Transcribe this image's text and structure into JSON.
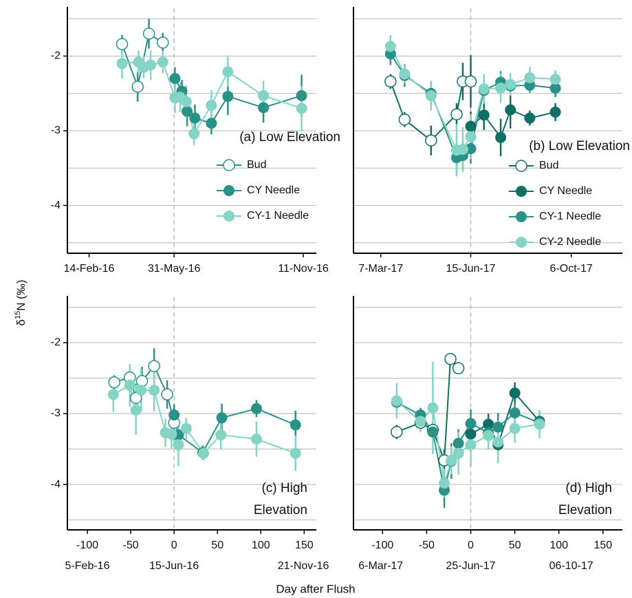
{
  "chart_data": [
    {
      "type": "line",
      "title": [
        "(a) Low Elevation"
      ],
      "xlim": [
        -123,
        164
      ],
      "ylim": [
        -4.64,
        -1.36
      ],
      "yticks": [
        -2,
        -3,
        -4
      ],
      "minor_yticks": [
        -1.5,
        -2.5,
        -3.5,
        -4.5
      ],
      "show_ytick_labels": true,
      "date_ticks": [
        {
          "value": -98,
          "label": "14-Feb-16"
        },
        {
          "value": 0,
          "label": "31-May-16"
        },
        {
          "value": 149,
          "label": "11-Nov-16"
        }
      ],
      "vline": 0,
      "legend": true,
      "series": [
        {
          "name": "Bud",
          "color": "#2a9187",
          "hollow": true,
          "x": [
            -60,
            -42,
            -29,
            -13
          ],
          "values": [
            -1.84,
            -2.41,
            -1.7,
            -1.82
          ],
          "errors": [
            0.12,
            0.2,
            0.2,
            0.13
          ]
        },
        {
          "name": "CY Needle",
          "color": "#2a9187",
          "hollow": false,
          "x": [
            1,
            9,
            15,
            24,
            43,
            62,
            103,
            147
          ],
          "values": [
            -2.3,
            -2.47,
            -2.74,
            -2.83,
            -2.9,
            -2.54,
            -2.69,
            -2.53
          ],
          "errors": [
            0.15,
            0.15,
            0.2,
            0.18,
            0.15,
            0.25,
            0.2,
            0.28
          ]
        },
        {
          "name": "CY-1 Needle",
          "color": "#84d4c6",
          "hollow": false,
          "x": [
            -60,
            -41,
            -35,
            -27,
            -13,
            1,
            7,
            14,
            23,
            43,
            62,
            103,
            147
          ],
          "values": [
            -2.1,
            -2.08,
            -2.15,
            -2.12,
            -2.08,
            -2.56,
            -2.55,
            -2.61,
            -3.04,
            -2.66,
            -2.21,
            -2.53,
            -2.7
          ],
          "errors": [
            0.2,
            0.15,
            0.15,
            0.2,
            0.15,
            0.2,
            0.2,
            0.22,
            0.15,
            0.2,
            0.2,
            0.2,
            0.3
          ]
        }
      ]
    },
    {
      "type": "line",
      "title": [
        "(b) Low Elevation"
      ],
      "xlim": [
        -133,
        172
      ],
      "ylim": [
        -4.64,
        -1.36
      ],
      "yticks": [
        -2,
        -3,
        -4
      ],
      "minor_yticks": [
        -1.5,
        -2.5,
        -3.5,
        -4.5
      ],
      "show_ytick_labels": false,
      "date_ticks": [
        {
          "value": -102,
          "label": "7-Mar-17"
        },
        {
          "value": 0,
          "label": "15-Jun-17"
        },
        {
          "value": 114,
          "label": "6-Oct-17"
        }
      ],
      "vline": 0,
      "legend": true,
      "series": [
        {
          "name": "Bud",
          "color": "#0f6e66",
          "hollow": true,
          "x": [
            -91,
            -75,
            -45,
            -16,
            -9,
            0
          ],
          "values": [
            -2.34,
            -2.85,
            -3.13,
            -2.78,
            -2.34,
            -2.34
          ],
          "errors": [
            0.1,
            0.1,
            0.2,
            0.15,
            0.25,
            0.35
          ]
        },
        {
          "name": "CY Needle",
          "color": "#0f6e66",
          "hollow": false,
          "x": [
            0,
            15,
            34,
            45,
            67,
            96
          ],
          "values": [
            -2.94,
            -2.79,
            -3.09,
            -2.72,
            -2.83,
            -2.75
          ],
          "errors": [
            0.2,
            0.2,
            0.25,
            0.25,
            0.1,
            0.12
          ]
        },
        {
          "name": "CY-1 Needle",
          "color": "#2a9187",
          "hollow": false,
          "x": [
            -91,
            -75,
            -45,
            -16,
            -9,
            0,
            15,
            34,
            45,
            67,
            96
          ],
          "values": [
            -1.97,
            -2.26,
            -2.5,
            -3.36,
            -3.33,
            -3.24,
            -2.46,
            -2.35,
            -2.4,
            -2.39,
            -2.43
          ],
          "errors": [
            0.15,
            0.15,
            0.15,
            0.2,
            0.2,
            0.2,
            0.15,
            0.15,
            0.1,
            0.1,
            0.12
          ]
        },
        {
          "name": "CY-2 Needle",
          "color": "#84d4c6",
          "hollow": false,
          "x": [
            -91,
            -75,
            -45,
            -16,
            -9,
            0,
            15,
            34,
            45,
            67,
            96
          ],
          "values": [
            -1.87,
            -2.24,
            -2.53,
            -3.26,
            -3.25,
            -3.08,
            -2.44,
            -2.43,
            -2.38,
            -2.29,
            -2.31
          ],
          "errors": [
            0.15,
            0.12,
            0.2,
            0.35,
            0.3,
            0.3,
            0.2,
            0.2,
            0.15,
            0.15,
            0.12
          ]
        }
      ]
    },
    {
      "type": "line",
      "title": [
        "(c) High",
        "Elevation"
      ],
      "xlim": [
        -123,
        164
      ],
      "ylim": [
        -4.64,
        -1.36
      ],
      "yticks": [
        -2,
        -3,
        -4
      ],
      "minor_yticks": [
        -1.5,
        -2.5,
        -3.5,
        -4.5
      ],
      "show_ytick_labels": true,
      "xticks": [
        -100,
        -50,
        0,
        50,
        100,
        150
      ],
      "date_ticks": [
        {
          "value": -100,
          "label": "5-Feb-16"
        },
        {
          "value": 0,
          "label": "15-Jun-16"
        },
        {
          "value": 149,
          "label": "21-Nov-16"
        }
      ],
      "vline": 0,
      "legend": false,
      "series": [
        {
          "color": "#2a9187",
          "hollow": true,
          "x": [
            -69,
            -51,
            -44,
            -37,
            -23,
            -8,
            0
          ],
          "values": [
            -2.56,
            -2.49,
            -2.78,
            -2.54,
            -2.33,
            -2.73,
            -3.13
          ],
          "errors": [
            0.1,
            0.1,
            0.2,
            0.2,
            0.25,
            0.2,
            0.25
          ]
        },
        {
          "color": "#2a9187",
          "hollow": false,
          "x": [
            0,
            5,
            33,
            55,
            95,
            140
          ],
          "values": [
            -3.02,
            -3.3,
            -3.55,
            -3.06,
            -2.93,
            -3.16
          ],
          "errors": [
            0.15,
            0.2,
            0.1,
            0.2,
            0.12,
            0.2
          ]
        },
        {
          "color": "#84d4c6",
          "hollow": false,
          "x": [
            -70,
            -51,
            -44,
            -38,
            -23,
            -10,
            -3,
            5,
            14,
            34,
            54,
            95,
            140
          ],
          "values": [
            -2.73,
            -2.6,
            -2.95,
            -2.67,
            -2.67,
            -3.27,
            -3.29,
            -3.44,
            -3.21,
            -3.56,
            -3.3,
            -3.36,
            -3.56
          ],
          "errors": [
            0.25,
            0.3,
            0.35,
            0.3,
            0.3,
            0.2,
            0.2,
            0.3,
            0.15,
            0.1,
            0.2,
            0.25,
            0.25
          ]
        }
      ]
    },
    {
      "type": "line",
      "title": [
        "(d) High",
        "Elevation"
      ],
      "xlim": [
        -133,
        172
      ],
      "ylim": [
        -4.64,
        -1.36
      ],
      "yticks": [
        -2,
        -3,
        -4
      ],
      "minor_yticks": [
        -1.5,
        -2.5,
        -3.5,
        -4.5
      ],
      "show_ytick_labels": false,
      "xticks": [
        -100,
        -50,
        0,
        50,
        100,
        150
      ],
      "date_ticks": [
        {
          "value": -102,
          "label": "6-Mar-17"
        },
        {
          "value": 0,
          "label": "25-Jun-17"
        },
        {
          "value": 114,
          "label": "06-10-17"
        }
      ],
      "vline": 0,
      "legend": false,
      "series": [
        {
          "color": "#0f6e66",
          "hollow": true,
          "x": [
            -84,
            -57,
            -43,
            -30,
            -23,
            -14
          ],
          "values": [
            -3.26,
            -3.13,
            -3.23,
            -3.66,
            -2.23,
            -2.36
          ],
          "errors": [
            0.1,
            0.08,
            0.1,
            0.15,
            0.06,
            0.06
          ]
        },
        {
          "color": "#0f6e66",
          "hollow": false,
          "x": [
            0,
            20,
            31,
            50,
            78
          ],
          "values": [
            -3.29,
            -3.15,
            -3.44,
            -2.71,
            -3.11
          ],
          "errors": [
            0.1,
            0.15,
            0.12,
            0.15,
            0.12
          ]
        },
        {
          "color": "#2a9187",
          "hollow": false,
          "x": [
            -84,
            -57,
            -43,
            -30,
            -22,
            -14,
            0,
            20,
            31,
            50,
            78
          ],
          "values": [
            -2.84,
            -3.02,
            -3.26,
            -4.08,
            -3.67,
            -3.42,
            -3.14,
            -3.27,
            -3.19,
            -2.99,
            -3.13
          ],
          "errors": [
            0.1,
            0.1,
            0.1,
            0.25,
            0.25,
            0.2,
            0.2,
            0.15,
            0.2,
            0.15,
            0.1
          ]
        },
        {
          "color": "#84d4c6",
          "hollow": false,
          "x": [
            -84,
            -57,
            -43,
            -30,
            -22,
            -14,
            0,
            20,
            31,
            50,
            78
          ],
          "values": [
            -2.82,
            -3.11,
            -2.92,
            -3.98,
            -3.66,
            -3.56,
            -3.44,
            -3.31,
            -3.4,
            -3.21,
            -3.15
          ],
          "errors": [
            0.25,
            0.15,
            0.65,
            0.2,
            0.2,
            0.3,
            0.3,
            0.2,
            0.3,
            0.2,
            0.2
          ]
        }
      ]
    }
  ],
  "xlabel": "Day after Flush",
  "ylabel": [
    "δ",
    "15",
    "N (‰)"
  ]
}
